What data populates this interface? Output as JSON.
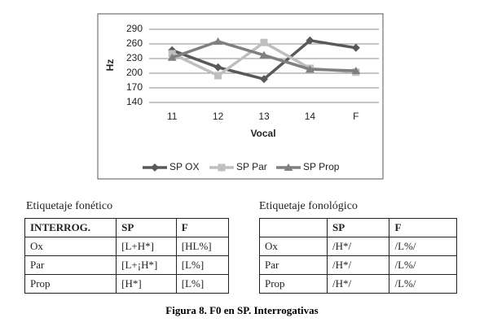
{
  "chart_data": {
    "type": "line",
    "y_label": "Hz",
    "x_label": "Vocal",
    "categories": [
      "11",
      "12",
      "13",
      "14",
      "F"
    ],
    "ylim": [
      140,
      290
    ],
    "yticks": [
      140,
      170,
      200,
      230,
      260,
      290
    ],
    "grid": true,
    "legend": "bottom",
    "series": [
      {
        "name": "SP OX",
        "color": "#595959",
        "marker": "diamond",
        "values": [
          247,
          212,
          188,
          267,
          252
        ]
      },
      {
        "name": "SP Par",
        "color": "#bfbfbf",
        "marker": "square",
        "values": [
          240,
          195,
          263,
          210,
          202
        ]
      },
      {
        "name": "SP Prop",
        "color": "#808080",
        "marker": "triangle",
        "values": [
          232,
          265,
          237,
          208,
          205
        ]
      }
    ]
  },
  "left_table": {
    "title": "Etiquetaje fonético",
    "header": [
      "INTERROG.",
      "SP",
      "F"
    ],
    "rows": [
      [
        "Ox",
        "[L+H*]",
        "[HL%]"
      ],
      [
        "Par",
        "[L+¡H*]",
        "[L%]"
      ],
      [
        "Prop",
        "[H*]",
        "[L%]"
      ]
    ]
  },
  "right_table": {
    "title": "Etiquetaje fonológico",
    "header": [
      "SP",
      "F"
    ],
    "rows": [
      [
        "Ox",
        "/H*/",
        "/L%/"
      ],
      [
        "Par",
        "/H*/",
        "/L%/"
      ],
      [
        "Prop",
        "/H*/",
        "/L%/"
      ]
    ]
  },
  "caption": "Figura 8. F0 en SP. Interrogativas"
}
